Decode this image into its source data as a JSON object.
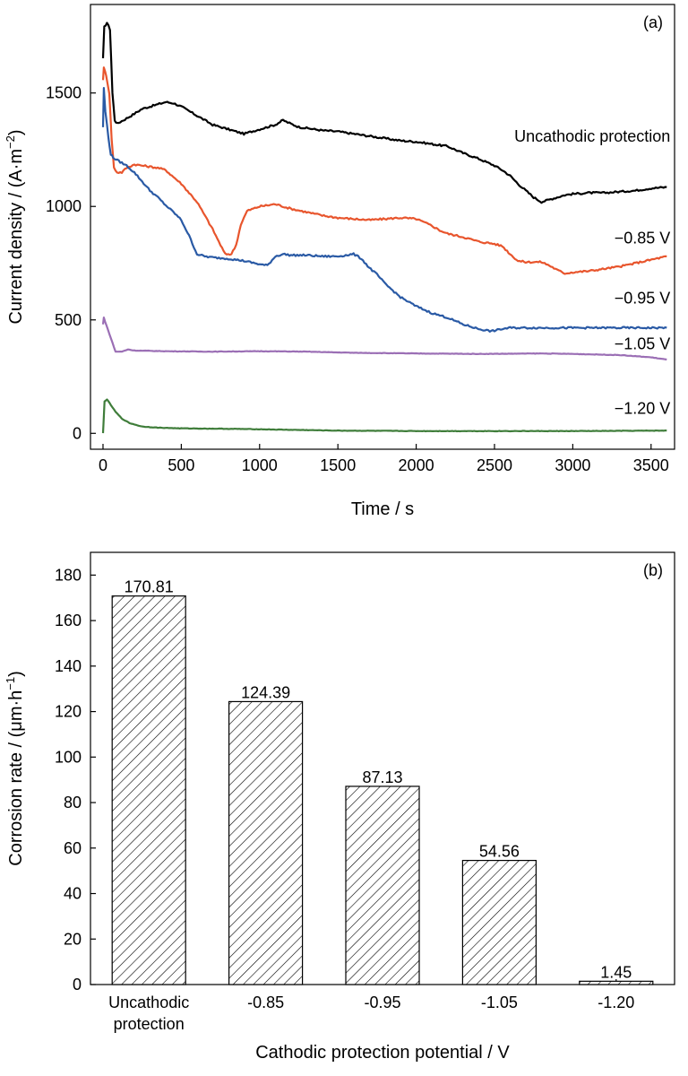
{
  "chart_data": [
    {
      "panel": "(a)",
      "type": "line",
      "xlabel": "Time / s",
      "ylabel_main": "Current density / (A·m",
      "ylabel_sup": "−2",
      "ylabel_end": ")",
      "xlim": [
        -80,
        3650
      ],
      "ylim": [
        -70,
        1890
      ],
      "xticks": [
        0,
        500,
        1000,
        1500,
        2000,
        2500,
        3000,
        3500
      ],
      "yticks": [
        0,
        500,
        1000,
        1500
      ],
      "series": [
        {
          "name": "Uncathodic protection",
          "color": "#000000",
          "points": [
            [
              0,
              1650
            ],
            [
              8,
              1790
            ],
            [
              25,
              1810
            ],
            [
              45,
              1780
            ],
            [
              60,
              1500
            ],
            [
              75,
              1380
            ],
            [
              90,
              1365
            ],
            [
              130,
              1380
            ],
            [
              180,
              1400
            ],
            [
              250,
              1430
            ],
            [
              300,
              1440
            ],
            [
              350,
              1450
            ],
            [
              400,
              1460
            ],
            [
              450,
              1455
            ],
            [
              500,
              1440
            ],
            [
              550,
              1420
            ],
            [
              600,
              1400
            ],
            [
              650,
              1380
            ],
            [
              700,
              1360
            ],
            [
              750,
              1350
            ],
            [
              800,
              1340
            ],
            [
              850,
              1330
            ],
            [
              900,
              1320
            ],
            [
              950,
              1330
            ],
            [
              1000,
              1340
            ],
            [
              1050,
              1350
            ],
            [
              1100,
              1360
            ],
            [
              1150,
              1380
            ],
            [
              1180,
              1370
            ],
            [
              1250,
              1350
            ],
            [
              1300,
              1345
            ],
            [
              1400,
              1335
            ],
            [
              1500,
              1330
            ],
            [
              1600,
              1320
            ],
            [
              1700,
              1310
            ],
            [
              1800,
              1300
            ],
            [
              1900,
              1290
            ],
            [
              2000,
              1285
            ],
            [
              2100,
              1275
            ],
            [
              2200,
              1265
            ],
            [
              2300,
              1235
            ],
            [
              2400,
              1210
            ],
            [
              2500,
              1180
            ],
            [
              2550,
              1160
            ],
            [
              2600,
              1135
            ],
            [
              2650,
              1100
            ],
            [
              2700,
              1070
            ],
            [
              2750,
              1040
            ],
            [
              2800,
              1020
            ],
            [
              2850,
              1030
            ],
            [
              2900,
              1040
            ],
            [
              2950,
              1050
            ],
            [
              3000,
              1055
            ],
            [
              3100,
              1060
            ],
            [
              3200,
              1060
            ],
            [
              3300,
              1065
            ],
            [
              3400,
              1070
            ],
            [
              3500,
              1080
            ],
            [
              3600,
              1085
            ]
          ]
        },
        {
          "name": "−0.85 V",
          "color": "#e8552d",
          "points": [
            [
              0,
              1560
            ],
            [
              5,
              1610
            ],
            [
              20,
              1580
            ],
            [
              40,
              1500
            ],
            [
              55,
              1300
            ],
            [
              70,
              1170
            ],
            [
              90,
              1150
            ],
            [
              120,
              1150
            ],
            [
              150,
              1170
            ],
            [
              200,
              1185
            ],
            [
              250,
              1180
            ],
            [
              300,
              1175
            ],
            [
              350,
              1170
            ],
            [
              400,
              1160
            ],
            [
              450,
              1130
            ],
            [
              500,
              1100
            ],
            [
              550,
              1060
            ],
            [
              600,
              1020
            ],
            [
              650,
              960
            ],
            [
              700,
              900
            ],
            [
              750,
              830
            ],
            [
              780,
              790
            ],
            [
              820,
              790
            ],
            [
              850,
              830
            ],
            [
              880,
              920
            ],
            [
              920,
              980
            ],
            [
              1000,
              1000
            ],
            [
              1100,
              1010
            ],
            [
              1200,
              990
            ],
            [
              1300,
              975
            ],
            [
              1400,
              960
            ],
            [
              1500,
              950
            ],
            [
              1600,
              945
            ],
            [
              1700,
              940
            ],
            [
              1800,
              945
            ],
            [
              1900,
              950
            ],
            [
              2000,
              945
            ],
            [
              2050,
              930
            ],
            [
              2100,
              915
            ],
            [
              2150,
              895
            ],
            [
              2200,
              880
            ],
            [
              2300,
              865
            ],
            [
              2400,
              845
            ],
            [
              2500,
              835
            ],
            [
              2550,
              825
            ],
            [
              2600,
              790
            ],
            [
              2650,
              760
            ],
            [
              2700,
              755
            ],
            [
              2800,
              755
            ],
            [
              2850,
              740
            ],
            [
              2900,
              720
            ],
            [
              2950,
              705
            ],
            [
              3000,
              710
            ],
            [
              3100,
              715
            ],
            [
              3200,
              725
            ],
            [
              3300,
              735
            ],
            [
              3400,
              750
            ],
            [
              3500,
              765
            ],
            [
              3600,
              780
            ]
          ]
        },
        {
          "name": "−0.95 V",
          "color": "#2a5aa5",
          "points": [
            [
              0,
              1350
            ],
            [
              5,
              1520
            ],
            [
              15,
              1420
            ],
            [
              35,
              1300
            ],
            [
              50,
              1230
            ],
            [
              65,
              1215
            ],
            [
              100,
              1200
            ],
            [
              150,
              1180
            ],
            [
              200,
              1150
            ],
            [
              250,
              1110
            ],
            [
              300,
              1070
            ],
            [
              350,
              1040
            ],
            [
              400,
              1005
            ],
            [
              450,
              975
            ],
            [
              500,
              940
            ],
            [
              550,
              870
            ],
            [
              600,
              790
            ],
            [
              650,
              780
            ],
            [
              700,
              775
            ],
            [
              800,
              770
            ],
            [
              900,
              760
            ],
            [
              1000,
              745
            ],
            [
              1050,
              740
            ],
            [
              1100,
              780
            ],
            [
              1150,
              790
            ],
            [
              1200,
              785
            ],
            [
              1300,
              785
            ],
            [
              1400,
              780
            ],
            [
              1500,
              780
            ],
            [
              1600,
              790
            ],
            [
              1650,
              770
            ],
            [
              1700,
              730
            ],
            [
              1750,
              700
            ],
            [
              1800,
              660
            ],
            [
              1850,
              630
            ],
            [
              1900,
              600
            ],
            [
              2000,
              560
            ],
            [
              2100,
              530
            ],
            [
              2200,
              510
            ],
            [
              2300,
              480
            ],
            [
              2400,
              460
            ],
            [
              2480,
              450
            ],
            [
              2550,
              460
            ],
            [
              2600,
              465
            ],
            [
              3000,
              465
            ],
            [
              3300,
              465
            ],
            [
              3600,
              465
            ]
          ]
        },
        {
          "name": "−1.05 V",
          "color": "#9b6fb5",
          "points": [
            [
              0,
              480
            ],
            [
              5,
              510
            ],
            [
              30,
              460
            ],
            [
              60,
              400
            ],
            [
              80,
              360
            ],
            [
              120,
              360
            ],
            [
              160,
              370
            ],
            [
              200,
              365
            ],
            [
              400,
              362
            ],
            [
              700,
              360
            ],
            [
              1000,
              362
            ],
            [
              1300,
              360
            ],
            [
              1600,
              355
            ],
            [
              2000,
              352
            ],
            [
              2400,
              350
            ],
            [
              2800,
              352
            ],
            [
              3000,
              350
            ],
            [
              3300,
              345
            ],
            [
              3500,
              335
            ],
            [
              3600,
              325
            ]
          ]
        },
        {
          "name": "−1.20 V",
          "color": "#3f7d3a",
          "points": [
            [
              0,
              0
            ],
            [
              3,
              40
            ],
            [
              10,
              140
            ],
            [
              25,
              150
            ],
            [
              50,
              125
            ],
            [
              80,
              95
            ],
            [
              120,
              65
            ],
            [
              170,
              45
            ],
            [
              250,
              30
            ],
            [
              350,
              25
            ],
            [
              500,
              22
            ],
            [
              800,
              20
            ],
            [
              1000,
              18
            ],
            [
              1500,
              12
            ],
            [
              2000,
              10
            ],
            [
              2500,
              10
            ],
            [
              3000,
              10
            ],
            [
              3600,
              12
            ]
          ]
        }
      ],
      "series_labels": [
        {
          "text": "Uncathodic protection",
          "at": [
            3600,
            1310
          ]
        },
        {
          "text": "−0.85 V",
          "at": [
            3600,
            860
          ]
        },
        {
          "text": "−0.95 V",
          "at": [
            3600,
            595
          ]
        },
        {
          "text": "−1.05 V",
          "at": [
            3600,
            395
          ]
        },
        {
          "text": "−1.20 V",
          "at": [
            3600,
            110
          ]
        }
      ]
    },
    {
      "panel": "(b)",
      "type": "bar",
      "xlabel": "Cathodic protection potential / V",
      "ylabel_main": "Corrosion rate / (μm·h",
      "ylabel_sup": "−1",
      "ylabel_end": ")",
      "ylim": [
        0,
        190
      ],
      "yticks": [
        0,
        20,
        40,
        60,
        80,
        100,
        120,
        140,
        160,
        180
      ],
      "categories": [
        [
          "Uncathodic",
          "protection"
        ],
        [
          "-0.85"
        ],
        [
          "-0.95"
        ],
        [
          "-1.05"
        ],
        [
          "-1.20"
        ]
      ],
      "values": [
        170.81,
        124.39,
        87.13,
        54.56,
        1.45
      ],
      "value_labels": [
        "170.81",
        "124.39",
        "87.13",
        "54.56",
        "1.45"
      ],
      "bar_fill": "hatched"
    }
  ]
}
